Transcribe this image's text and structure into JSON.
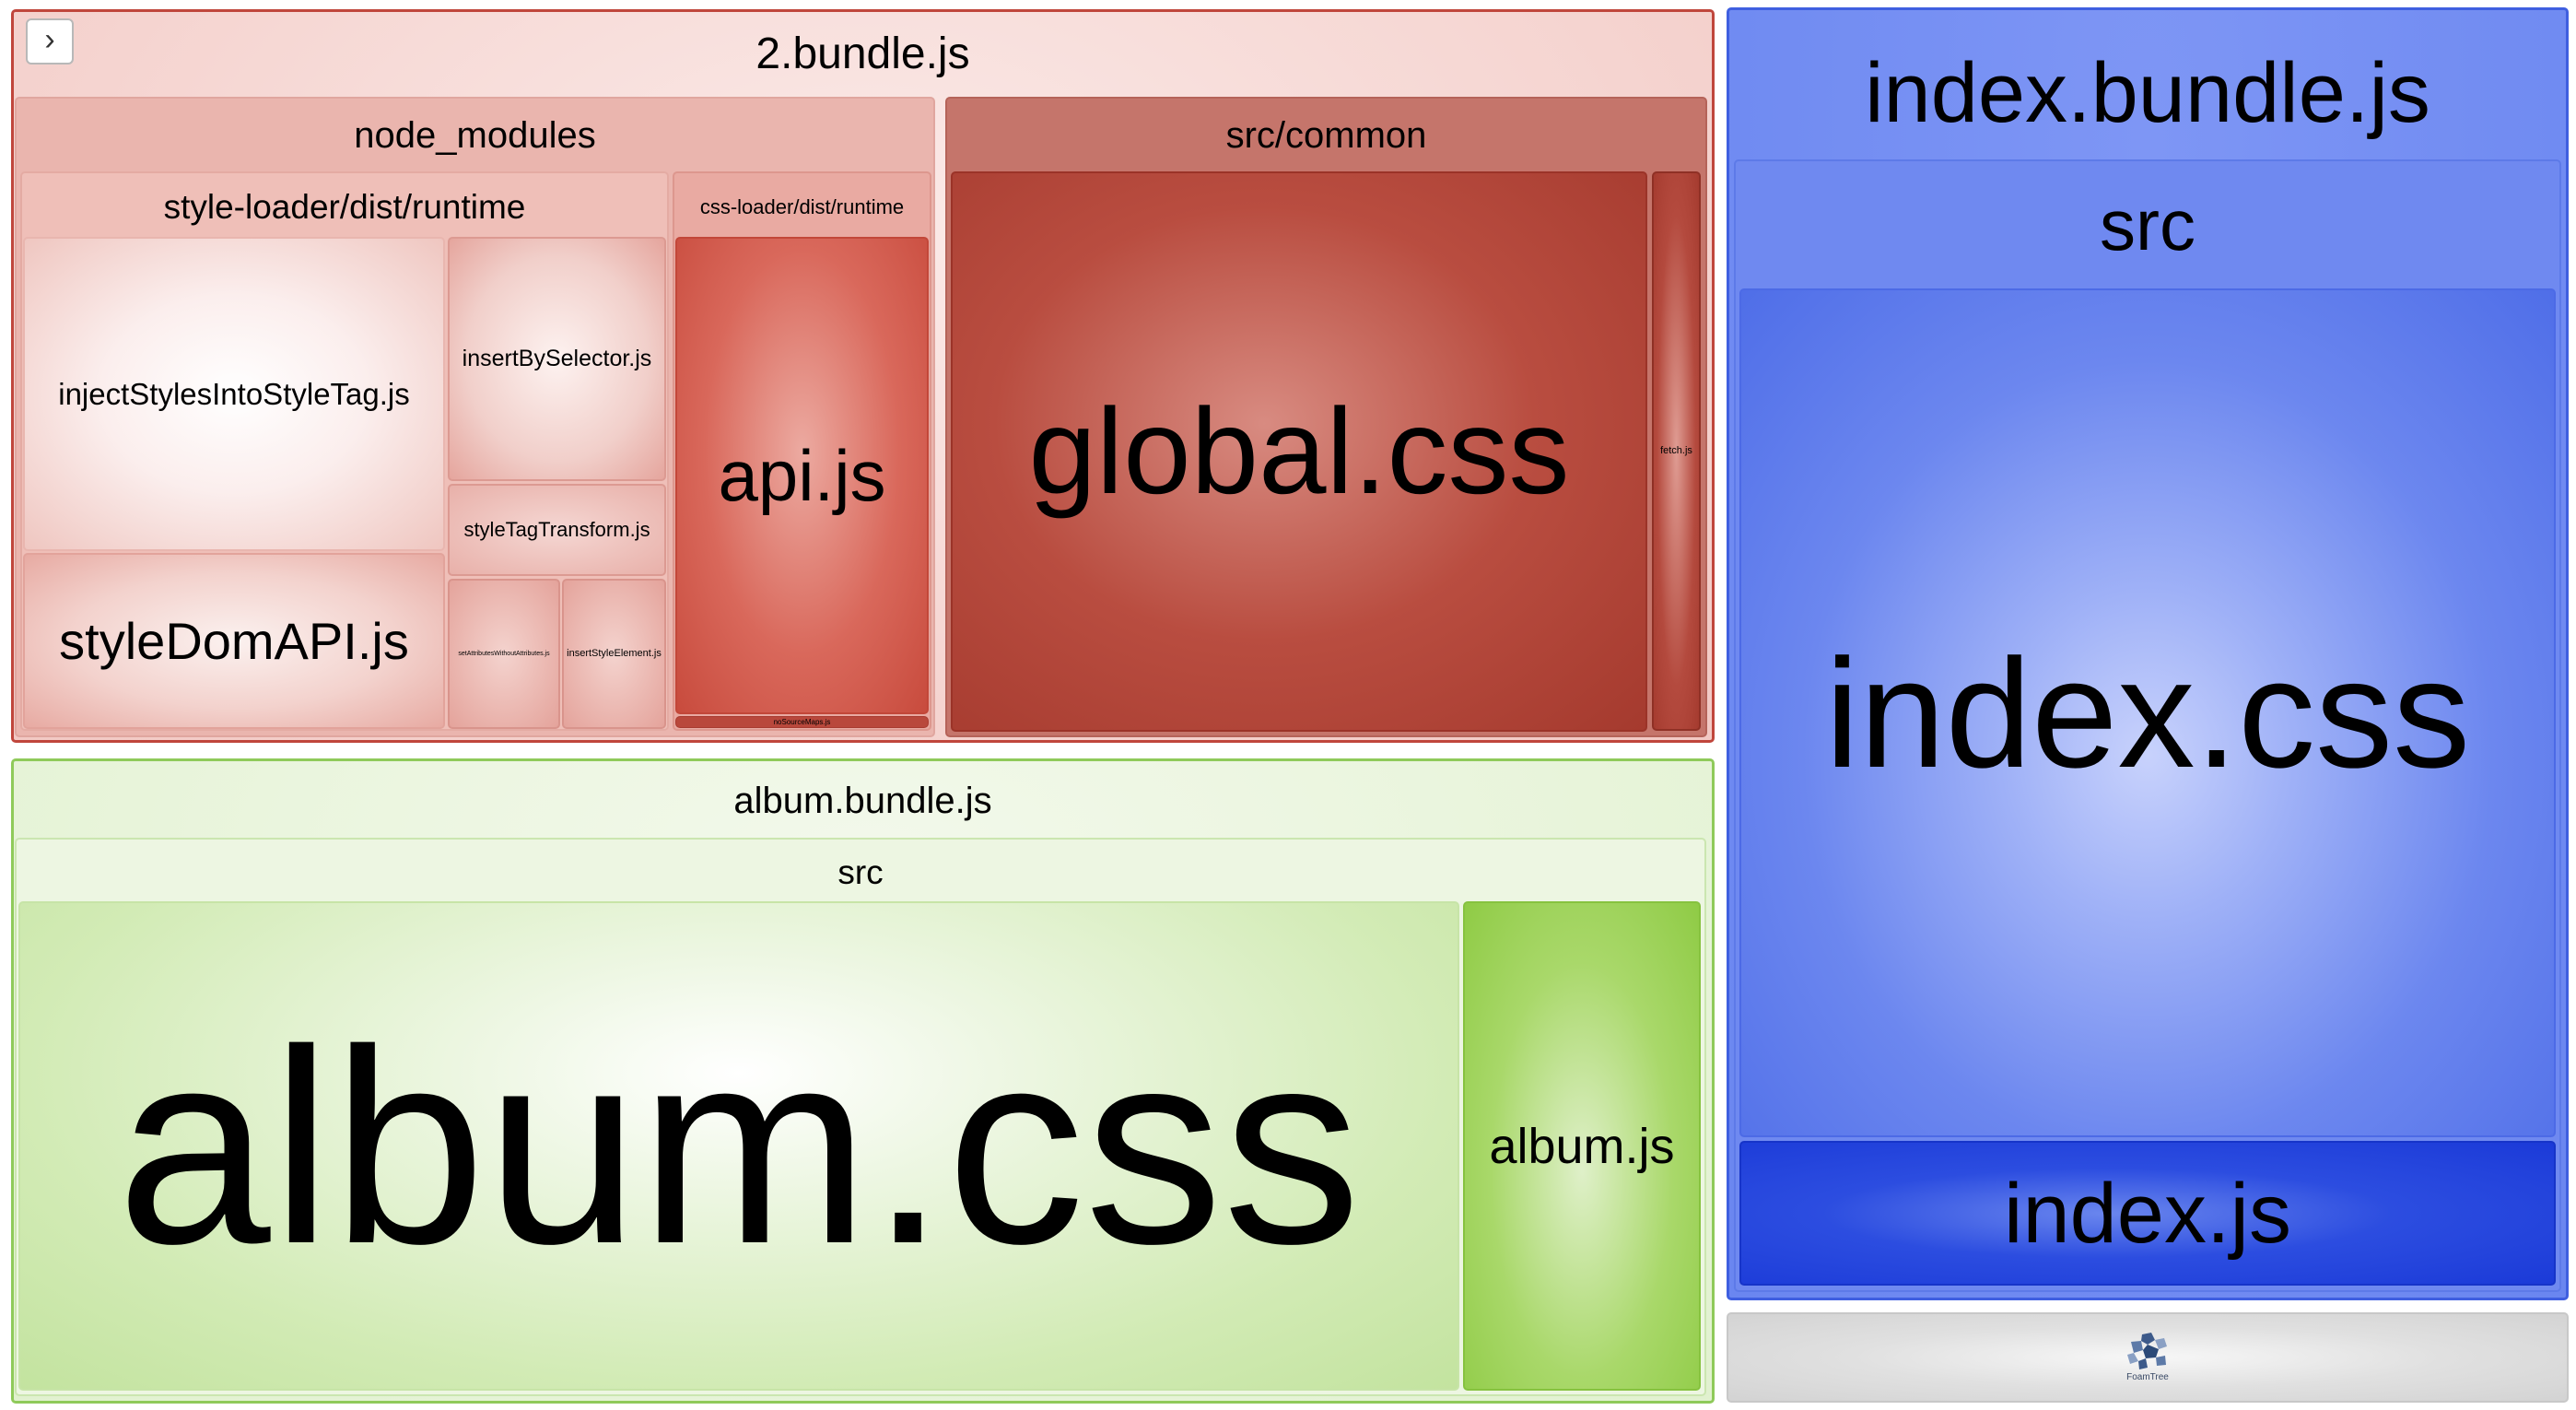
{
  "sidebar_toggle": {
    "icon": "chevron-right-icon",
    "glyph": "›"
  },
  "bundles": {
    "bundle2": {
      "title": "2.bundle.js",
      "node_modules": {
        "title": "node_modules",
        "style_loader": {
          "title": "style-loader/dist/runtime",
          "inject": "injectStylesIntoStyleTag.js",
          "insert_by_selector": "insertBySelector.js",
          "style_tag_transform": "styleTagTransform.js",
          "style_dom_api": "styleDomAPI.js",
          "set_attributes": "setAttributesWithoutAttributes.js",
          "insert_style_element": "insertStyleElement.js"
        },
        "css_loader": {
          "title": "css-loader/dist/runtime",
          "api": "api.js",
          "no_source_maps": "noSourceMaps.js"
        }
      },
      "src_common": {
        "title": "src/common",
        "global_css": "global.css",
        "fetch_js": "fetch.js"
      }
    },
    "album": {
      "title": "album.bundle.js",
      "src": {
        "title": "src",
        "album_css": "album.css",
        "album_js": "album.js"
      }
    },
    "index": {
      "title": "index.bundle.js",
      "src": {
        "title": "src",
        "index_css": "index.css",
        "index_js": "index.js"
      }
    }
  },
  "logo": {
    "text": "FoamTree"
  },
  "colors": {
    "bundle2": "#c0463c",
    "album": "#8fca5a",
    "index": "#3f5fe0"
  }
}
